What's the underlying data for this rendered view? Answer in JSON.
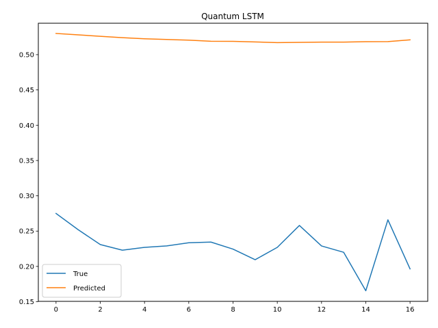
{
  "chart_data": {
    "type": "line",
    "title": "Quantum LSTM",
    "xlabel": "",
    "ylabel": "",
    "x": [
      0,
      1,
      2,
      3,
      4,
      5,
      6,
      7,
      8,
      9,
      10,
      11,
      12,
      13,
      14,
      15,
      16
    ],
    "xlim": [
      -0.8,
      16.8
    ],
    "ylim": [
      0.1505,
      0.5445
    ],
    "xticks": [
      0,
      2,
      4,
      6,
      8,
      10,
      12,
      14,
      16
    ],
    "yticks": [
      0.15,
      0.2,
      0.25,
      0.3,
      0.35,
      0.4,
      0.45,
      0.5
    ],
    "xtick_labels": [
      "0",
      "2",
      "4",
      "6",
      "8",
      "10",
      "12",
      "14",
      "16"
    ],
    "ytick_labels": [
      "0.15",
      "0.20",
      "0.25",
      "0.30",
      "0.35",
      "0.40",
      "0.45",
      "0.50"
    ],
    "grid": false,
    "legend_position": "lower-left",
    "series": [
      {
        "name": "True",
        "color": "#1f77b4",
        "values": [
          0.275,
          0.252,
          0.231,
          0.223,
          0.227,
          0.229,
          0.2335,
          0.2345,
          0.2245,
          0.2095,
          0.227,
          0.258,
          0.229,
          0.22,
          0.1655,
          0.266,
          0.1965
        ]
      },
      {
        "name": "Predicted",
        "color": "#ff7f0e",
        "values": [
          0.53,
          0.528,
          0.526,
          0.524,
          0.5225,
          0.5215,
          0.5205,
          0.519,
          0.5188,
          0.518,
          0.517,
          0.5174,
          0.5178,
          0.5178,
          0.5183,
          0.5185,
          0.521
        ]
      }
    ]
  }
}
